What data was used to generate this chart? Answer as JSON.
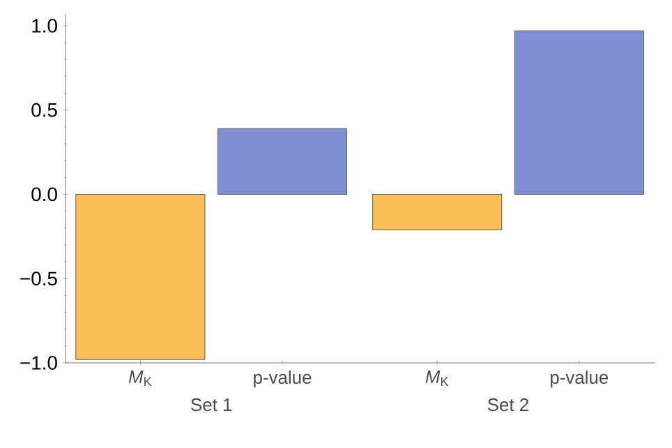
{
  "chart_data": {
    "type": "bar",
    "categories": [
      "*M*$_{K}$",
      "p-value",
      "*M*$_{K}$",
      "p-value"
    ],
    "values": [
      -0.98,
      0.39,
      -0.21,
      0.97
    ],
    "colors": [
      "#fbbf55",
      "#7f8fd4",
      "#fbbf55",
      "#7f8fd4"
    ],
    "annotations": [
      "Set 1",
      "Set 2"
    ],
    "ylim": [
      -1.0,
      1.07
    ],
    "yticks": [
      {
        "value": -1.0,
        "label": "−1.0"
      },
      {
        "value": -0.5,
        "label": "−0.5"
      },
      {
        "value": 0.0,
        "label": "0.0"
      },
      {
        "value": 0.5,
        "label": "0.5"
      },
      {
        "value": 1.0,
        "label": "1.0"
      }
    ],
    "grid": false
  }
}
